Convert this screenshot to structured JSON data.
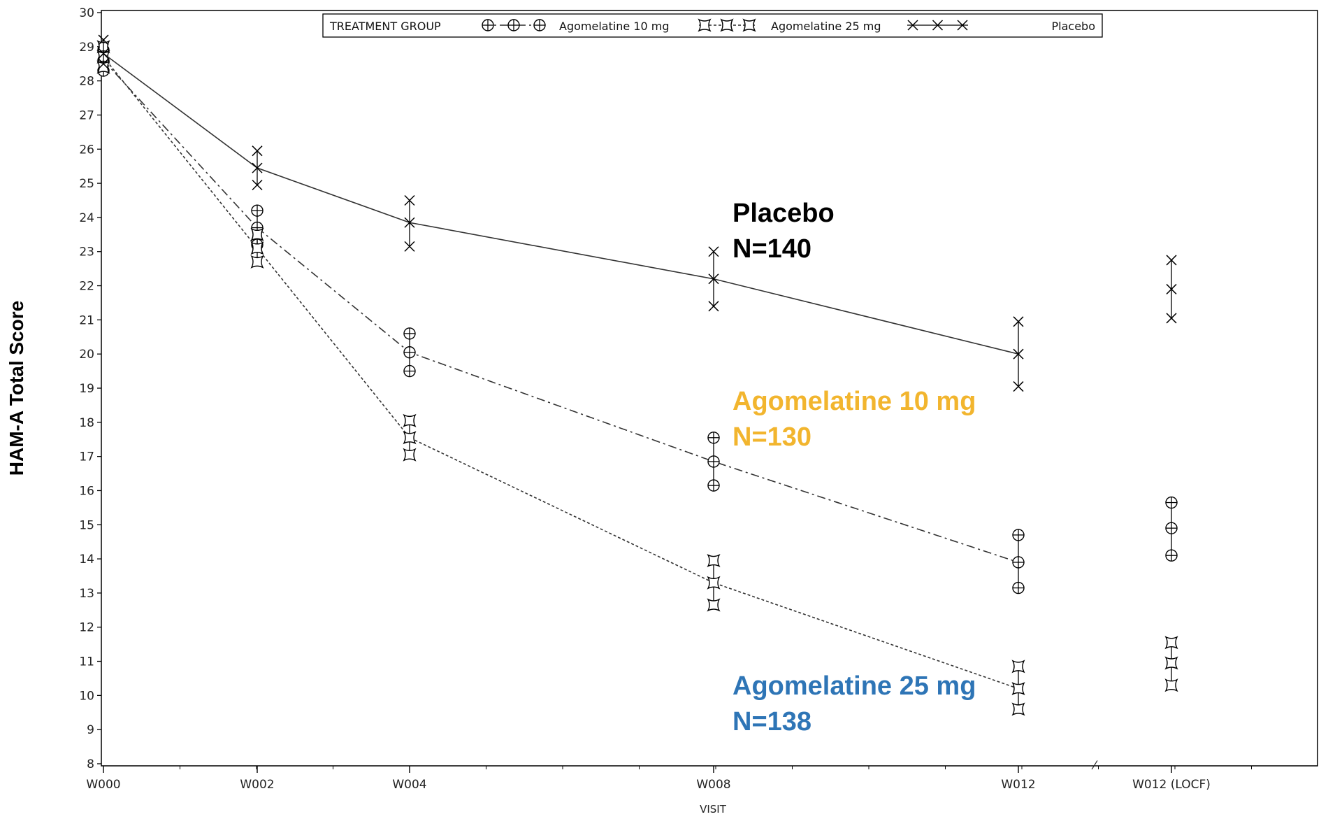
{
  "chart_data": {
    "type": "line",
    "xlabel": "VISIT",
    "ylabel": "HAM-A Total Score",
    "categories": [
      "W000",
      "W002",
      "W004",
      "W008",
      "W012",
      "W012 (LOCF)"
    ],
    "ylim": [
      8,
      30
    ],
    "y_ticks": [
      8,
      9,
      10,
      11,
      12,
      13,
      14,
      15,
      16,
      17,
      18,
      19,
      20,
      21,
      22,
      23,
      24,
      25,
      26,
      27,
      28,
      29,
      30
    ],
    "grid": false,
    "legend": {
      "title": "TREATMENT GROUP",
      "placement": "top-center",
      "entries": [
        "Agomelatine 10 mg",
        "Agomelatine 25 mg",
        "Placebo"
      ]
    },
    "series": [
      {
        "name": "Agomelatine 10 mg",
        "marker": "circle-plus",
        "line_style": "dash-dot",
        "connected_points": 5,
        "values": [
          28.6,
          23.7,
          20.05,
          16.85,
          13.9,
          14.9
        ],
        "lower": [
          28.3,
          23.2,
          19.5,
          16.15,
          13.15,
          14.1
        ],
        "upper": [
          28.9,
          24.2,
          20.6,
          17.55,
          14.7,
          15.65
        ]
      },
      {
        "name": "Agomelatine 25 mg",
        "marker": "square-star",
        "line_style": "dashed",
        "connected_points": 5,
        "values": [
          28.7,
          23.1,
          17.55,
          13.3,
          10.2,
          10.95
        ],
        "lower": [
          28.4,
          22.7,
          17.05,
          12.65,
          9.6,
          10.3
        ],
        "upper": [
          29.0,
          23.5,
          18.05,
          13.95,
          10.85,
          11.55
        ]
      },
      {
        "name": "Placebo",
        "marker": "x",
        "line_style": "solid",
        "connected_points": 5,
        "values": [
          28.8,
          25.45,
          23.85,
          22.2,
          20.0,
          21.9
        ],
        "lower": [
          28.5,
          24.95,
          23.15,
          21.4,
          19.05,
          21.05
        ],
        "upper": [
          29.2,
          25.95,
          24.5,
          23.0,
          20.95,
          22.75
        ]
      }
    ],
    "annotations": [
      {
        "group": "Placebo",
        "lines": [
          "Placebo",
          "N=140"
        ],
        "color": "#000000"
      },
      {
        "group": "Agomelatine 10 mg",
        "lines": [
          "Agomelatine 10 mg",
          "N=130"
        ],
        "color": "#F2B52E"
      },
      {
        "group": "Agomelatine 25 mg",
        "lines": [
          "Agomelatine 25 mg",
          "N=138"
        ],
        "color": "#2E75B6"
      }
    ]
  }
}
